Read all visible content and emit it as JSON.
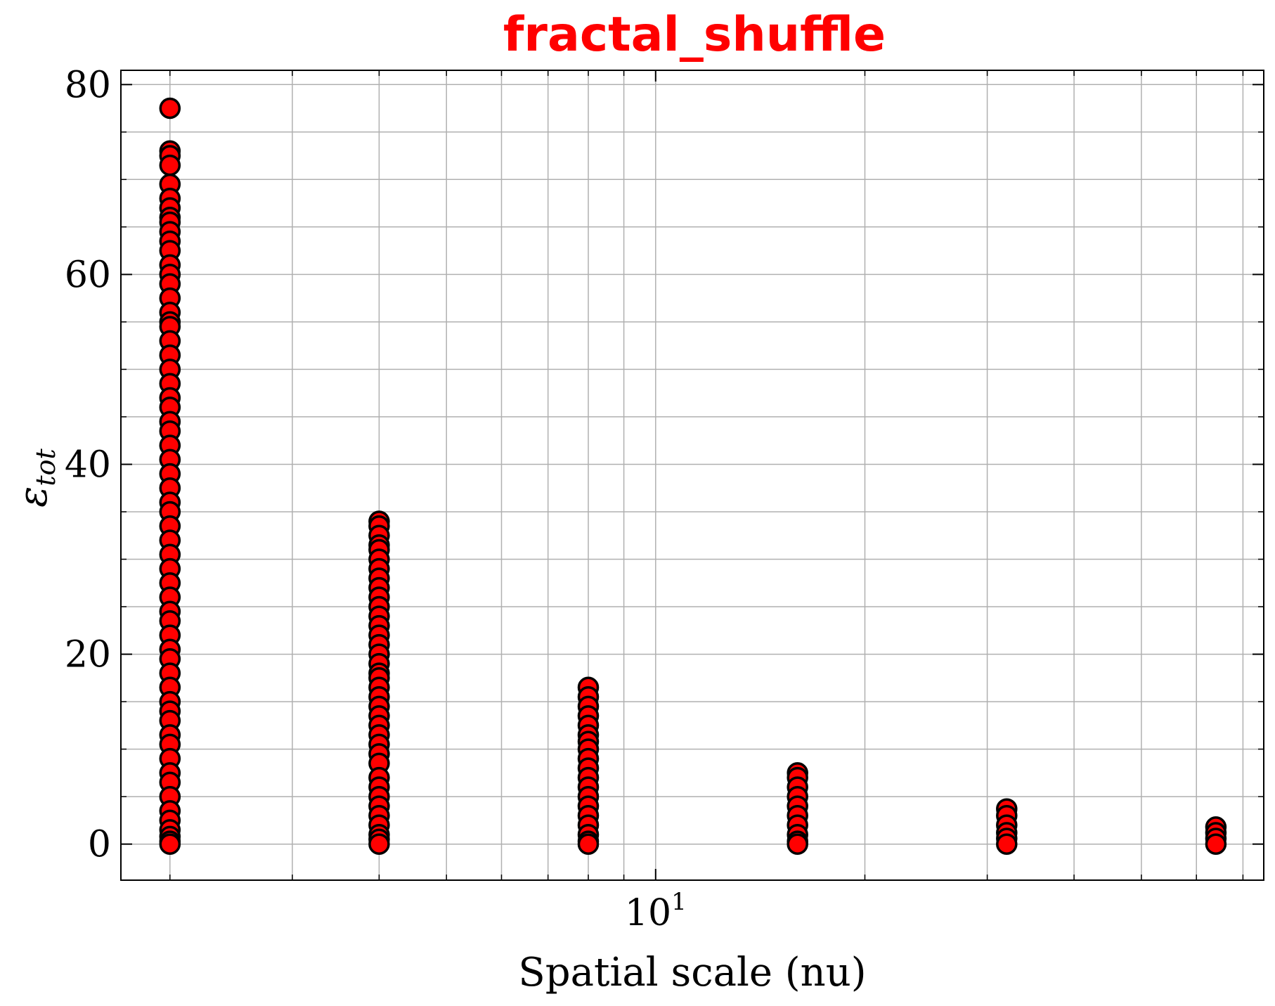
{
  "chart_data": {
    "type": "scatter",
    "title": "fractal_shuffle",
    "xlabel": "Spatial scale (nu)",
    "ylabel_base": "ε",
    "ylabel_sub": "tot",
    "x_scale": "log",
    "xlim": [
      1.7,
      75
    ],
    "ylim": [
      -3.8,
      81.5
    ],
    "yticks": [
      0,
      20,
      40,
      60,
      80
    ],
    "x_major_tick": {
      "value": 10,
      "base": "10",
      "exponent": "1"
    },
    "grid": true,
    "colors": {
      "title": "#ff0000",
      "marker_fill": "#ff0000",
      "marker_edge": "#000000",
      "grid": "#b0b0b0"
    },
    "series": [
      {
        "x": 2,
        "y": [
          77.5,
          73,
          72.5,
          71.5,
          69.5,
          68,
          67,
          66,
          65.5,
          64.5,
          63.5,
          62.5,
          61,
          60,
          59,
          57.5,
          56,
          55,
          54.5,
          53,
          51.5,
          50,
          48.5,
          47,
          46,
          44.5,
          43.5,
          42,
          40.5,
          39,
          37.5,
          36,
          35,
          33.5,
          32,
          30.5,
          29,
          27.5,
          26,
          24.5,
          23.5,
          22,
          20.5,
          19.5,
          18,
          16.5,
          15,
          14,
          13,
          11.5,
          10.5,
          9,
          7.5,
          6.5,
          5,
          3.5,
          2.5,
          1.5,
          0.8,
          0.3,
          0
        ]
      },
      {
        "x": 4,
        "y": [
          34,
          33.5,
          32.5,
          31.5,
          31,
          30,
          29,
          28,
          27,
          26,
          25,
          24,
          23,
          22,
          21,
          20,
          19,
          18,
          17.5,
          16.5,
          15.5,
          14.5,
          13.5,
          12.5,
          11.5,
          10.5,
          9.5,
          8.5,
          7,
          6,
          5,
          4,
          3,
          2,
          1,
          0.5,
          0
        ]
      },
      {
        "x": 8,
        "y": [
          16.5,
          15.5,
          14.5,
          13.5,
          12.5,
          11.5,
          10.8,
          10,
          9,
          8,
          7,
          6,
          5,
          4,
          3,
          2,
          1,
          0.3,
          0
        ]
      },
      {
        "x": 16,
        "y": [
          7.5,
          7,
          6,
          5,
          4,
          3,
          2,
          1,
          0.3,
          0
        ]
      },
      {
        "x": 32,
        "y": [
          3.7,
          3,
          2,
          1.2,
          0.6,
          0
        ]
      },
      {
        "x": 64,
        "y": [
          1.8,
          1.2,
          0.6,
          0
        ]
      }
    ]
  }
}
